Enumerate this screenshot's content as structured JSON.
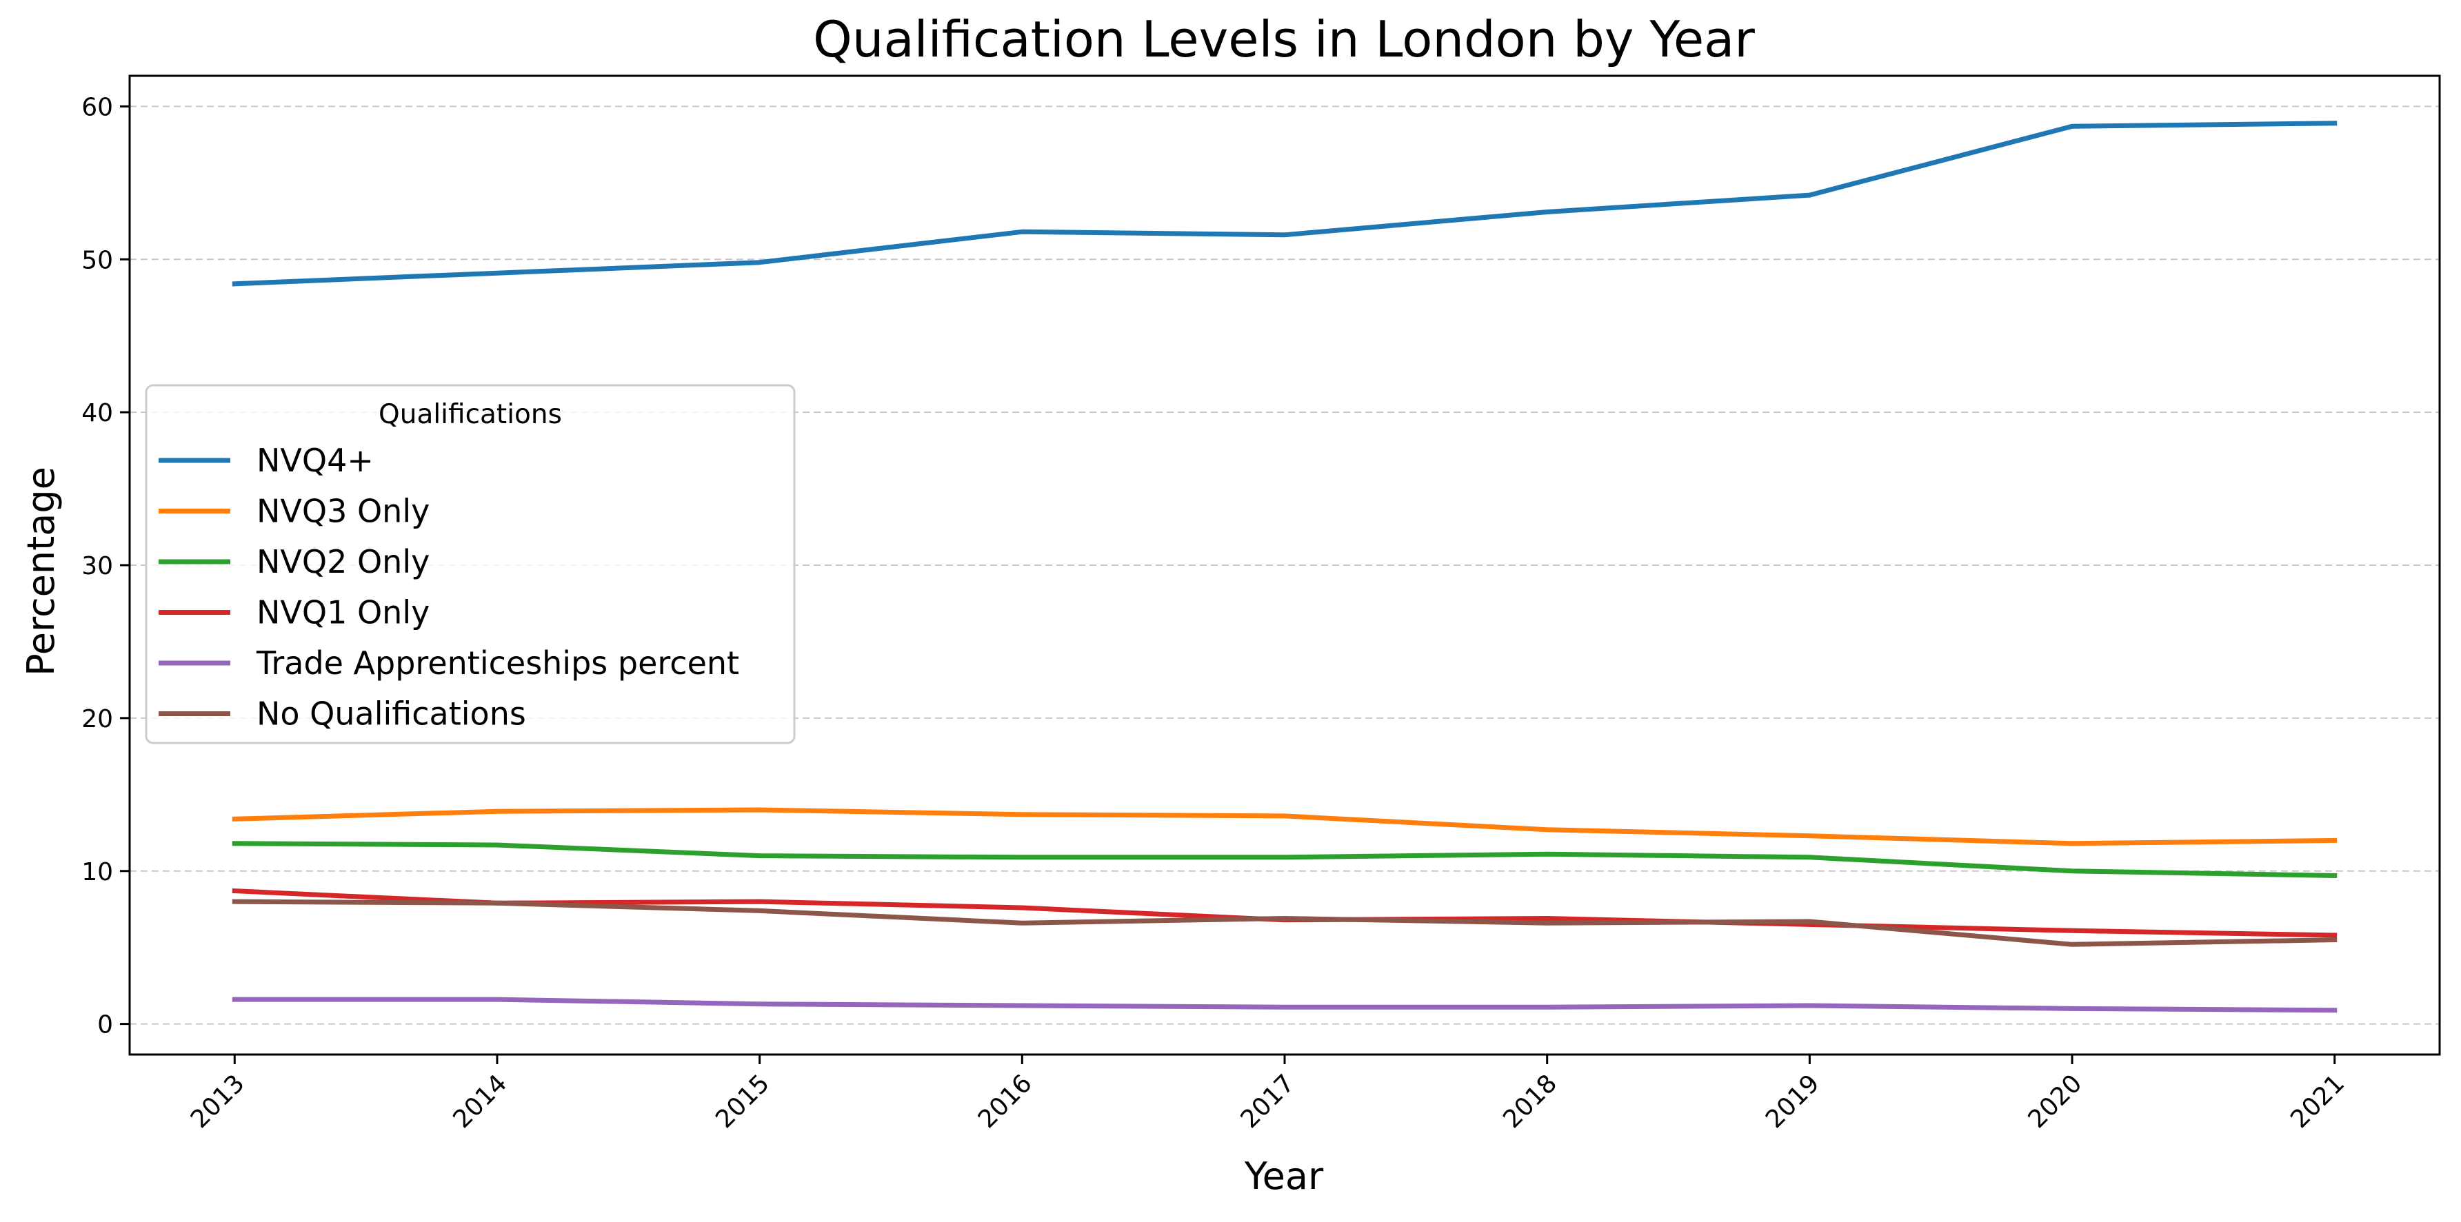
{
  "chart_data": {
    "type": "line",
    "title": "Qualification Levels in London by Year",
    "xlabel": "Year",
    "ylabel": "Percentage",
    "x": [
      "2013",
      "2014",
      "2015",
      "2016",
      "2017",
      "2018",
      "2019",
      "2020",
      "2021"
    ],
    "xlim": [
      2012.6,
      2021.4
    ],
    "ylim": [
      -2,
      62
    ],
    "yticks": [
      0,
      10,
      20,
      30,
      40,
      50,
      60
    ],
    "ytick_labels": [
      "0",
      "10",
      "20",
      "30",
      "40",
      "50",
      "60"
    ],
    "grid": "y-dashed",
    "legend": {
      "title": "Qualifications",
      "placement": "center-left"
    },
    "series": [
      {
        "name": "NVQ4+",
        "color": "#1f77b4",
        "values": [
          48.4,
          49.1,
          49.8,
          51.8,
          51.6,
          53.1,
          54.2,
          58.7,
          58.9
        ]
      },
      {
        "name": "NVQ3 Only",
        "color": "#ff7f0e",
        "values": [
          13.4,
          13.9,
          14.0,
          13.7,
          13.6,
          12.7,
          12.3,
          11.8,
          12.0
        ]
      },
      {
        "name": "NVQ2 Only",
        "color": "#2ca02c",
        "values": [
          11.8,
          11.7,
          11.0,
          10.9,
          10.9,
          11.1,
          10.9,
          10.0,
          9.7
        ]
      },
      {
        "name": "NVQ1 Only",
        "color": "#d62728",
        "values": [
          8.7,
          7.9,
          8.0,
          7.6,
          6.8,
          6.9,
          6.5,
          6.1,
          5.8
        ]
      },
      {
        "name": "Trade Apprenticeships percent",
        "color": "#9467bd",
        "values": [
          1.6,
          1.6,
          1.3,
          1.2,
          1.1,
          1.1,
          1.2,
          1.0,
          0.9
        ]
      },
      {
        "name": "No Qualifications",
        "color": "#8c564b",
        "values": [
          8.0,
          7.9,
          7.4,
          6.6,
          6.9,
          6.6,
          6.7,
          5.2,
          5.5
        ]
      }
    ]
  }
}
